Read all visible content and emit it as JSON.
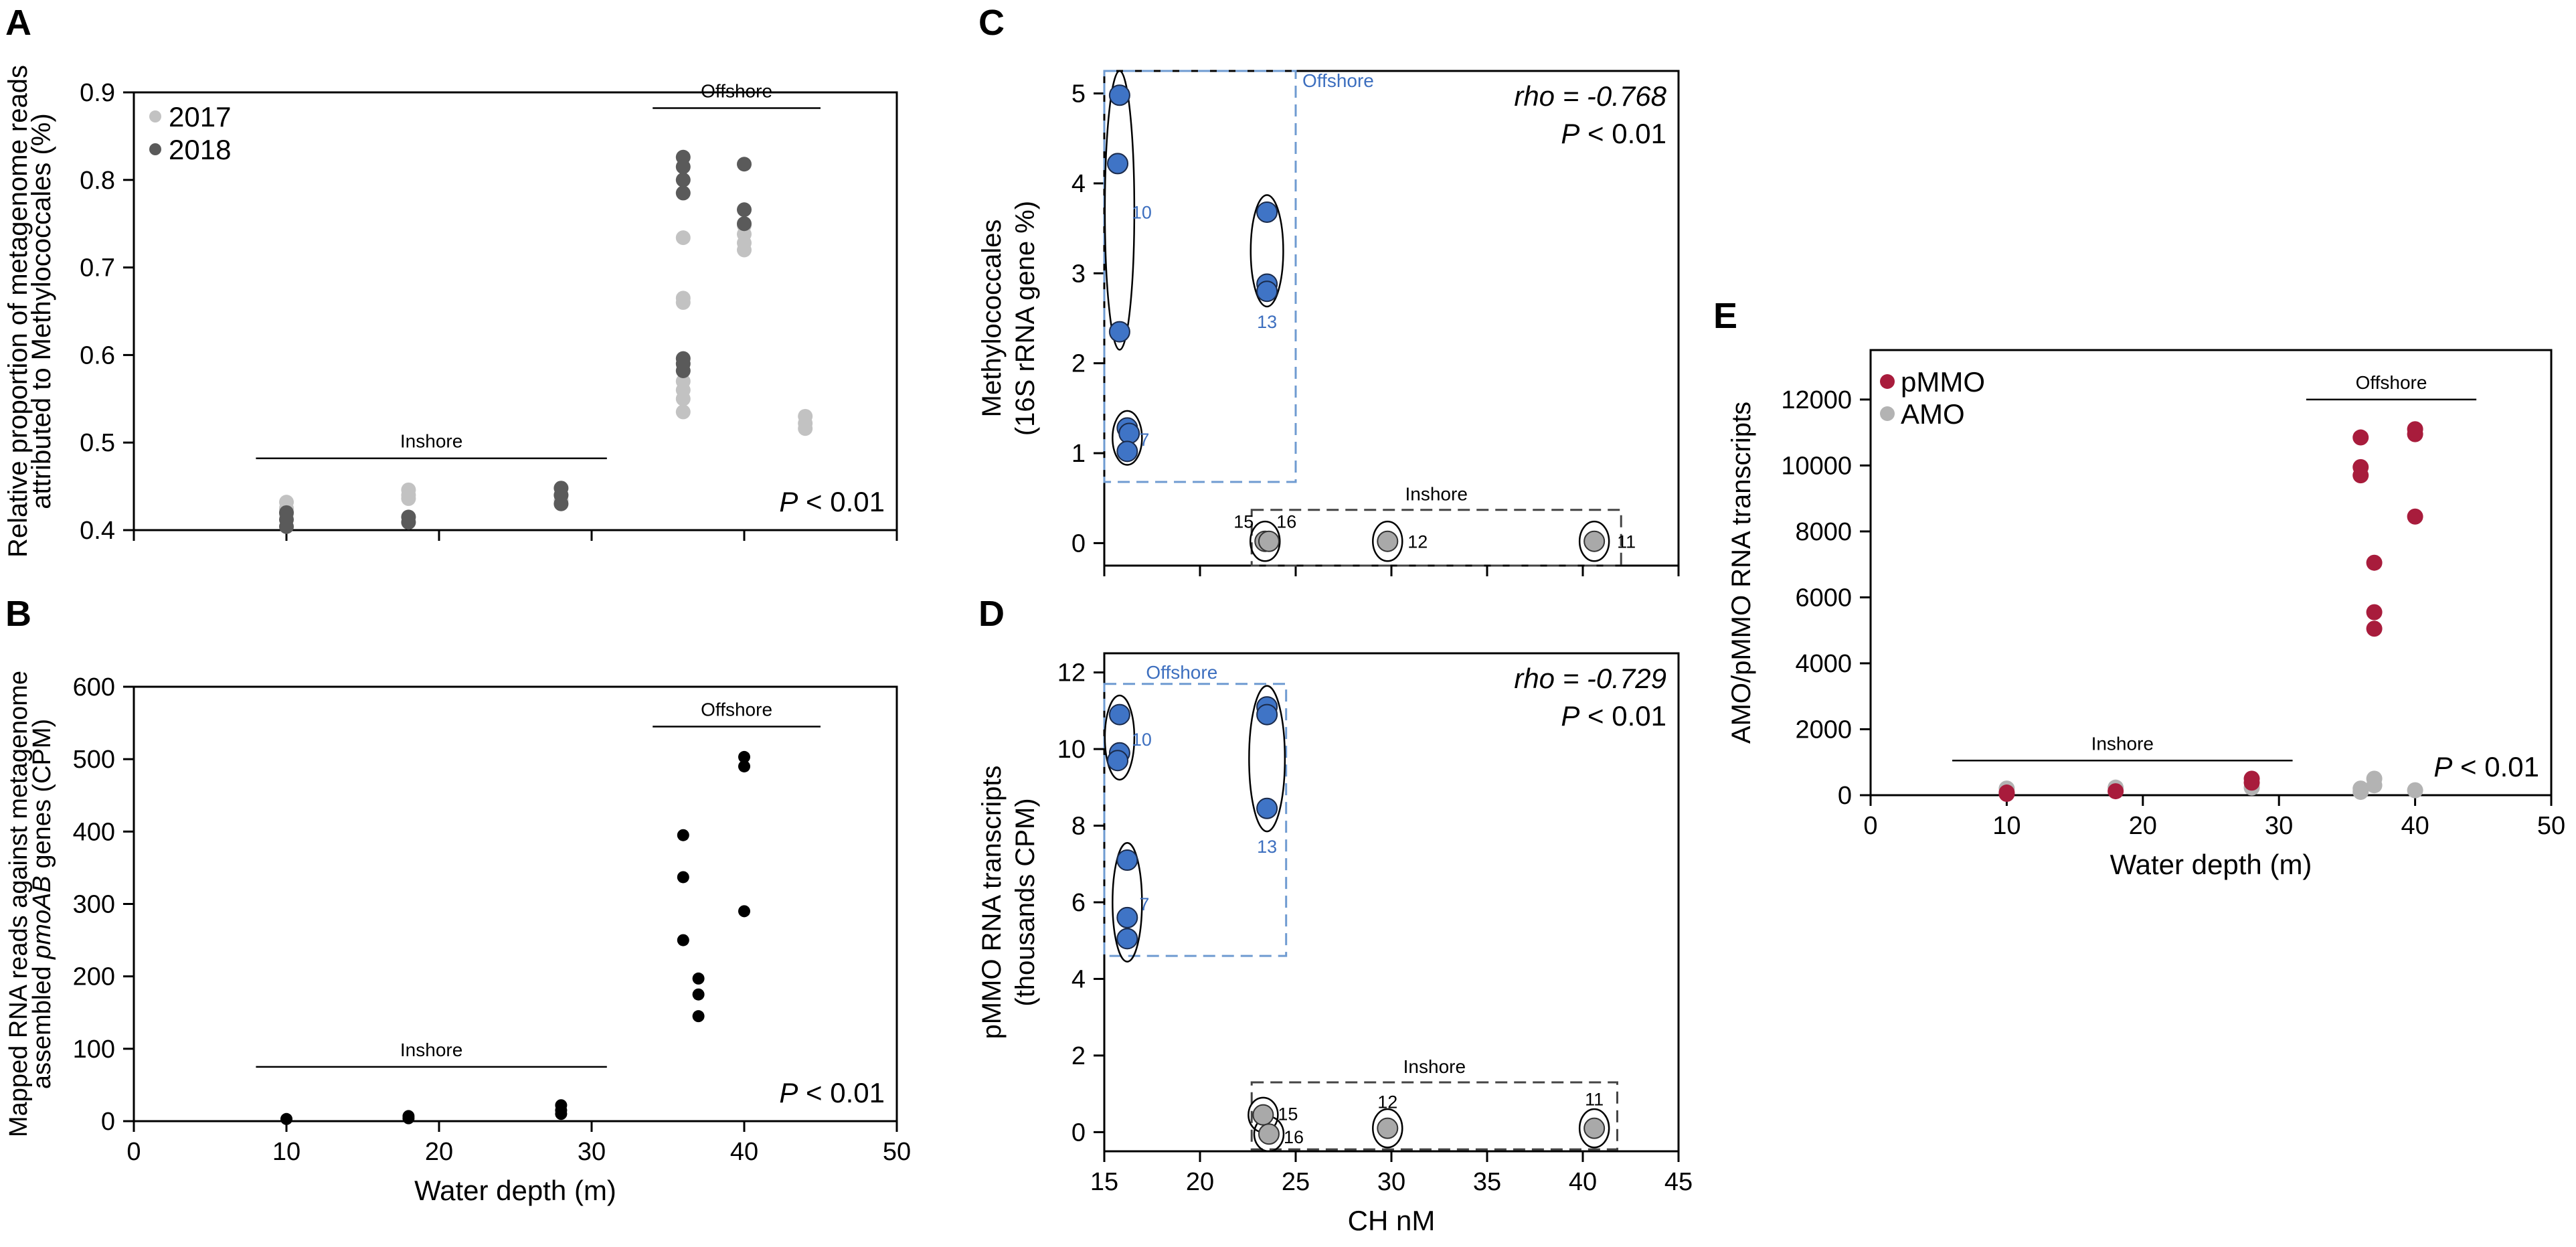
{
  "chart_data": [
    {
      "panel": "A",
      "type": "scatter",
      "xlabel": "",
      "ylabel": [
        "Relative proportion of metagenome reads",
        "attributed to Methylococcales (%)"
      ],
      "xlim": [
        0,
        50
      ],
      "ylim": [
        0.4,
        0.9
      ],
      "x_ticks": [
        0,
        10,
        20,
        30,
        40,
        50
      ],
      "y_ticks": [
        0.4,
        0.5,
        0.6,
        0.7,
        0.8,
        0.9
      ],
      "y_tick_labels": [
        "0.4",
        "0.5",
        "0.6",
        "0.7",
        "0.8",
        "0.9"
      ],
      "legend": [
        "2017",
        "2018"
      ],
      "legend_colors": [
        "#c2c2c2",
        "#5a5a5a"
      ],
      "groups": [
        {
          "label": "Inshore",
          "x_range": [
            8,
            31
          ],
          "y": 0.482
        },
        {
          "label": "Offshore",
          "x_range": [
            34,
            45
          ],
          "y": 0.882
        }
      ],
      "p_value_prefix": "P",
      "p_value_suffix": " < 0.01",
      "series": [
        {
          "name": "2017",
          "color": "#c2c2c2",
          "points": [
            [
              10,
              0.432
            ],
            [
              10,
              0.425
            ],
            [
              10,
              0.418
            ],
            [
              18,
              0.446
            ],
            [
              18,
              0.44
            ],
            [
              18,
              0.436
            ],
            [
              28,
              0.44
            ],
            [
              28,
              0.434
            ],
            [
              36,
              0.734
            ],
            [
              36,
              0.665
            ],
            [
              36,
              0.66
            ],
            [
              36,
              0.57
            ],
            [
              36,
              0.56
            ],
            [
              36,
              0.55
            ],
            [
              36,
              0.535
            ],
            [
              40,
              0.748
            ],
            [
              40,
              0.738
            ],
            [
              40,
              0.728
            ],
            [
              40,
              0.72
            ],
            [
              44,
              0.53
            ],
            [
              44,
              0.522
            ],
            [
              44,
              0.516
            ]
          ]
        },
        {
          "name": "2018",
          "color": "#5a5a5a",
          "points": [
            [
              10,
              0.42
            ],
            [
              10,
              0.412
            ],
            [
              10,
              0.404
            ],
            [
              18,
              0.415
            ],
            [
              18,
              0.409
            ],
            [
              28,
              0.448
            ],
            [
              28,
              0.44
            ],
            [
              28,
              0.43
            ],
            [
              36,
              0.826
            ],
            [
              36,
              0.815
            ],
            [
              36,
              0.8
            ],
            [
              36,
              0.785
            ],
            [
              36,
              0.596
            ],
            [
              36,
              0.59
            ],
            [
              36,
              0.582
            ],
            [
              40,
              0.818
            ],
            [
              40,
              0.766
            ],
            [
              40,
              0.75
            ]
          ]
        }
      ]
    },
    {
      "panel": "B",
      "type": "scatter",
      "xlabel": "Water depth (m)",
      "ylabel_prefix": [
        "Mapped RNA reads against metagenome",
        "assembled "
      ],
      "ylabel_italic": "pmoAB",
      "ylabel_suffix": " genes (CPM)",
      "xlim": [
        0,
        50
      ],
      "ylim": [
        0,
        600
      ],
      "x_ticks": [
        0,
        10,
        20,
        30,
        40,
        50
      ],
      "y_ticks": [
        0,
        100,
        200,
        300,
        400,
        500,
        600
      ],
      "groups": [
        {
          "label": "Inshore",
          "x_range": [
            8,
            31
          ],
          "y": 75
        },
        {
          "label": "Offshore",
          "x_range": [
            34,
            45
          ],
          "y": 545
        }
      ],
      "p_value_prefix": "P",
      "p_value_suffix": " < 0.01",
      "series": [
        {
          "name": "samples",
          "color": "#000000",
          "points": [
            [
              10,
              3
            ],
            [
              18,
              7
            ],
            [
              18,
              4
            ],
            [
              28,
              22
            ],
            [
              28,
              15
            ],
            [
              28,
              10
            ],
            [
              36,
              395
            ],
            [
              36,
              337
            ],
            [
              36,
              250
            ],
            [
              37,
              197
            ],
            [
              37,
              175
            ],
            [
              37,
              145
            ],
            [
              40,
              503
            ],
            [
              40,
              490
            ],
            [
              40,
              290
            ]
          ]
        }
      ]
    },
    {
      "panel": "C",
      "type": "scatter",
      "xlabel": "",
      "ylabel": [
        "Methylococcales",
        "(16S rRNA gene %)"
      ],
      "xlim": [
        15,
        45
      ],
      "ylim": [
        -0.25,
        5.25
      ],
      "x_ticks": [
        15,
        20,
        25,
        30,
        35,
        40,
        45
      ],
      "y_ticks": [
        0,
        1,
        2,
        3,
        4,
        5
      ],
      "stat": "rho = -0.768",
      "p_value_prefix": "P",
      "p_value_suffix": " < 0.01",
      "boxes": [
        {
          "label": "Offshore",
          "x_range": [
            15,
            25
          ],
          "y_range": [
            0.68,
            5.25
          ],
          "color": "#6f9bd1"
        },
        {
          "label": "Inshore",
          "x_range": [
            22.7,
            42
          ],
          "y_range": [
            -0.25,
            0.37
          ],
          "color": "#444444"
        }
      ],
      "clusters": [
        {
          "label": "10",
          "cx": 15.8,
          "cy": 3.7,
          "rx": 0.9,
          "ry": 1.55,
          "color": "#3d6fbf"
        },
        {
          "label": "13",
          "cx": 23.5,
          "cy": 3.25,
          "rx": 1.0,
          "ry": 0.62,
          "color": "#3d6fbf"
        },
        {
          "label": "7",
          "cx": 16.2,
          "cy": 1.17,
          "rx": 0.8,
          "ry": 0.3,
          "color": "#3d6fbf"
        },
        {
          "label": "15",
          "cx": 23.4,
          "cy": 0.02,
          "rx": 0.75,
          "ry": 0.22,
          "color": "#000000"
        },
        {
          "label": "16",
          "cx": 23.4,
          "cy": 0.02,
          "rx": 0.0,
          "ry": 0.0,
          "color": "#000000"
        },
        {
          "label": "12",
          "cx": 29.8,
          "cy": 0.02,
          "rx": 0.75,
          "ry": 0.22,
          "color": "#000000"
        },
        {
          "label": "11",
          "cx": 40.6,
          "cy": 0.02,
          "rx": 0.9,
          "ry": 0.22,
          "color": "#000000"
        }
      ],
      "series": [
        {
          "name": "Offshore",
          "color": "#3f74c6",
          "points": [
            [
              15.8,
              4.98
            ],
            [
              15.7,
              4.22
            ],
            [
              15.8,
              2.35
            ],
            [
              16.2,
              1.28
            ],
            [
              16.3,
              1.22
            ],
            [
              16.2,
              1.02
            ],
            [
              23.5,
              3.68
            ],
            [
              23.5,
              2.88
            ],
            [
              23.5,
              2.8
            ]
          ]
        },
        {
          "name": "Inshore",
          "color": "#a9a9a9",
          "points": [
            [
              23.4,
              0.02
            ],
            [
              23.6,
              0.02
            ],
            [
              29.8,
              0.02
            ],
            [
              40.6,
              0.02
            ]
          ]
        }
      ]
    },
    {
      "panel": "D",
      "type": "scatter",
      "xlabel": "CH  nM",
      "ylabel": [
        "pMMO RNA transcripts",
        "(thousands CPM)"
      ],
      "xlim": [
        15,
        45
      ],
      "ylim": [
        -0.5,
        12.5
      ],
      "x_ticks": [
        15,
        20,
        25,
        30,
        35,
        40,
        45
      ],
      "y_ticks": [
        0,
        2,
        4,
        6,
        8,
        10,
        12
      ],
      "stat": "rho = -0.729",
      "p_value_prefix": "P",
      "p_value_suffix": " < 0.01",
      "boxes": [
        {
          "label": "Offshore",
          "x_range": [
            15,
            24.5
          ],
          "y_range": [
            4.6,
            11.7
          ],
          "color": "#6f9bd1"
        },
        {
          "label": "Inshore",
          "x_range": [
            22.7,
            41.8
          ],
          "y_range": [
            -0.45,
            1.3
          ],
          "color": "#444444"
        }
      ],
      "clusters": [
        {
          "label": "10",
          "cx": 15.8,
          "cy": 10.3,
          "rx": 0.9,
          "ry": 1.1,
          "color": "#3d6fbf"
        },
        {
          "label": "13",
          "cx": 23.5,
          "cy": 9.75,
          "rx": 1.1,
          "ry": 1.9,
          "color": "#3d6fbf"
        },
        {
          "label": "7",
          "cx": 16.2,
          "cy": 6.0,
          "rx": 0.9,
          "ry": 1.55,
          "color": "#3d6fbf"
        },
        {
          "label": "15",
          "cx": 23.3,
          "cy": 0.45,
          "rx": 0.75,
          "ry": 0.45,
          "color": "#000000"
        },
        {
          "label": "16",
          "cx": 23.6,
          "cy": -0.05,
          "rx": 0.75,
          "ry": 0.45,
          "color": "#000000"
        },
        {
          "label": "12",
          "cx": 29.8,
          "cy": 0.1,
          "rx": 0.75,
          "ry": 0.5,
          "color": "#000000"
        },
        {
          "label": "11",
          "cx": 40.6,
          "cy": 0.1,
          "rx": 0.9,
          "ry": 0.5,
          "color": "#000000"
        }
      ],
      "series": [
        {
          "name": "Offshore",
          "color": "#3f74c6",
          "points": [
            [
              15.8,
              10.9
            ],
            [
              15.8,
              9.9
            ],
            [
              15.7,
              9.7
            ],
            [
              16.2,
              7.1
            ],
            [
              16.2,
              5.6
            ],
            [
              16.2,
              5.05
            ],
            [
              23.5,
              11.1
            ],
            [
              23.5,
              10.9
            ],
            [
              23.5,
              8.45
            ]
          ]
        },
        {
          "name": "Inshore",
          "color": "#a9a9a9",
          "points": [
            [
              23.3,
              0.45
            ],
            [
              23.6,
              -0.05
            ],
            [
              29.8,
              0.1
            ],
            [
              40.6,
              0.1
            ]
          ]
        }
      ]
    },
    {
      "panel": "E",
      "type": "scatter",
      "xlabel": "Water depth (m)",
      "ylabel": [
        "AMO/pMMO RNA transcripts"
      ],
      "xlim": [
        0,
        50
      ],
      "ylim": [
        0,
        13500
      ],
      "x_ticks": [
        0,
        10,
        20,
        30,
        40,
        50
      ],
      "y_ticks": [
        0,
        2000,
        4000,
        6000,
        8000,
        10000,
        12000
      ],
      "legend": [
        "pMMO",
        "AMO"
      ],
      "legend_colors": [
        "#a81c3c",
        "#b3b3b3"
      ],
      "groups": [
        {
          "label": "Inshore",
          "x_range": [
            6,
            31
          ],
          "y": 1050
        },
        {
          "label": "Offshore",
          "x_range": [
            32,
            44.5
          ],
          "y": 12000
        }
      ],
      "p_value_prefix": "P",
      "p_value_suffix": " < 0.01",
      "series": [
        {
          "name": "AMO",
          "color": "#b3b3b3",
          "points": [
            [
              10,
              200
            ],
            [
              18,
              230
            ],
            [
              28,
              230
            ],
            [
              36,
              200
            ],
            [
              36,
              100
            ],
            [
              37,
              500
            ],
            [
              37,
              300
            ],
            [
              40,
              150
            ]
          ]
        },
        {
          "name": "pMMO",
          "color": "#a81c3c",
          "points": [
            [
              10,
              80
            ],
            [
              10,
              40
            ],
            [
              18,
              120
            ],
            [
              28,
              500
            ],
            [
              28,
              380
            ],
            [
              36,
              10850
            ],
            [
              36,
              9950
            ],
            [
              36,
              9700
            ],
            [
              37,
              7050
            ],
            [
              37,
              5550
            ],
            [
              37,
              5050
            ],
            [
              40,
              11100
            ],
            [
              40,
              10950
            ],
            [
              40,
              8450
            ]
          ]
        }
      ]
    }
  ],
  "panel_letters": {
    "A": "A",
    "B": "B",
    "C": "C",
    "D": "D",
    "E": "E"
  }
}
